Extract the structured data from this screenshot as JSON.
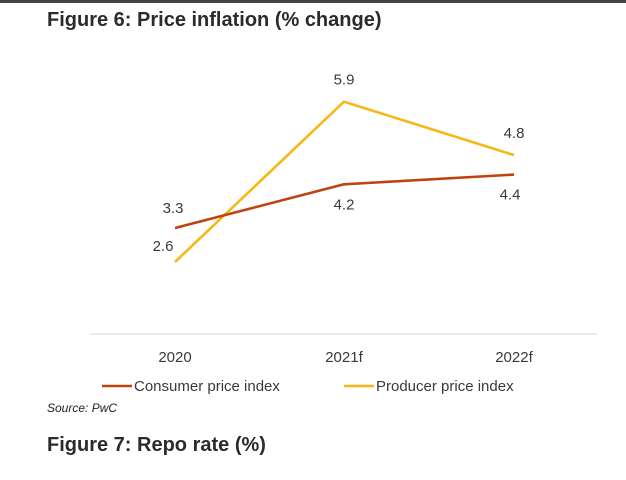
{
  "figure6": {
    "title": "Figure 6: Price inflation (% change)"
  },
  "figure7": {
    "title": "Figure 7: Repo rate (%)"
  },
  "source": "Source: PwC",
  "chart_data": {
    "type": "line",
    "title": "Figure 6: Price inflation (% change)",
    "categories": [
      "2020",
      "2021f",
      "2022f"
    ],
    "series": [
      {
        "name": "Consumer price index",
        "values": [
          3.3,
          4.2,
          4.4
        ],
        "color": "#c0420f",
        "labels": [
          "3.3",
          "4.2",
          "4.4"
        ]
      },
      {
        "name": "Producer price index",
        "values": [
          2.6,
          5.9,
          4.8
        ],
        "color": "#f7b718",
        "labels": [
          "2.6",
          "5.9",
          "4.8"
        ]
      }
    ],
    "ylim": [
      1.9,
      6.1
    ],
    "grid": false,
    "legend": "bottom",
    "xlabel": "",
    "ylabel": ""
  }
}
